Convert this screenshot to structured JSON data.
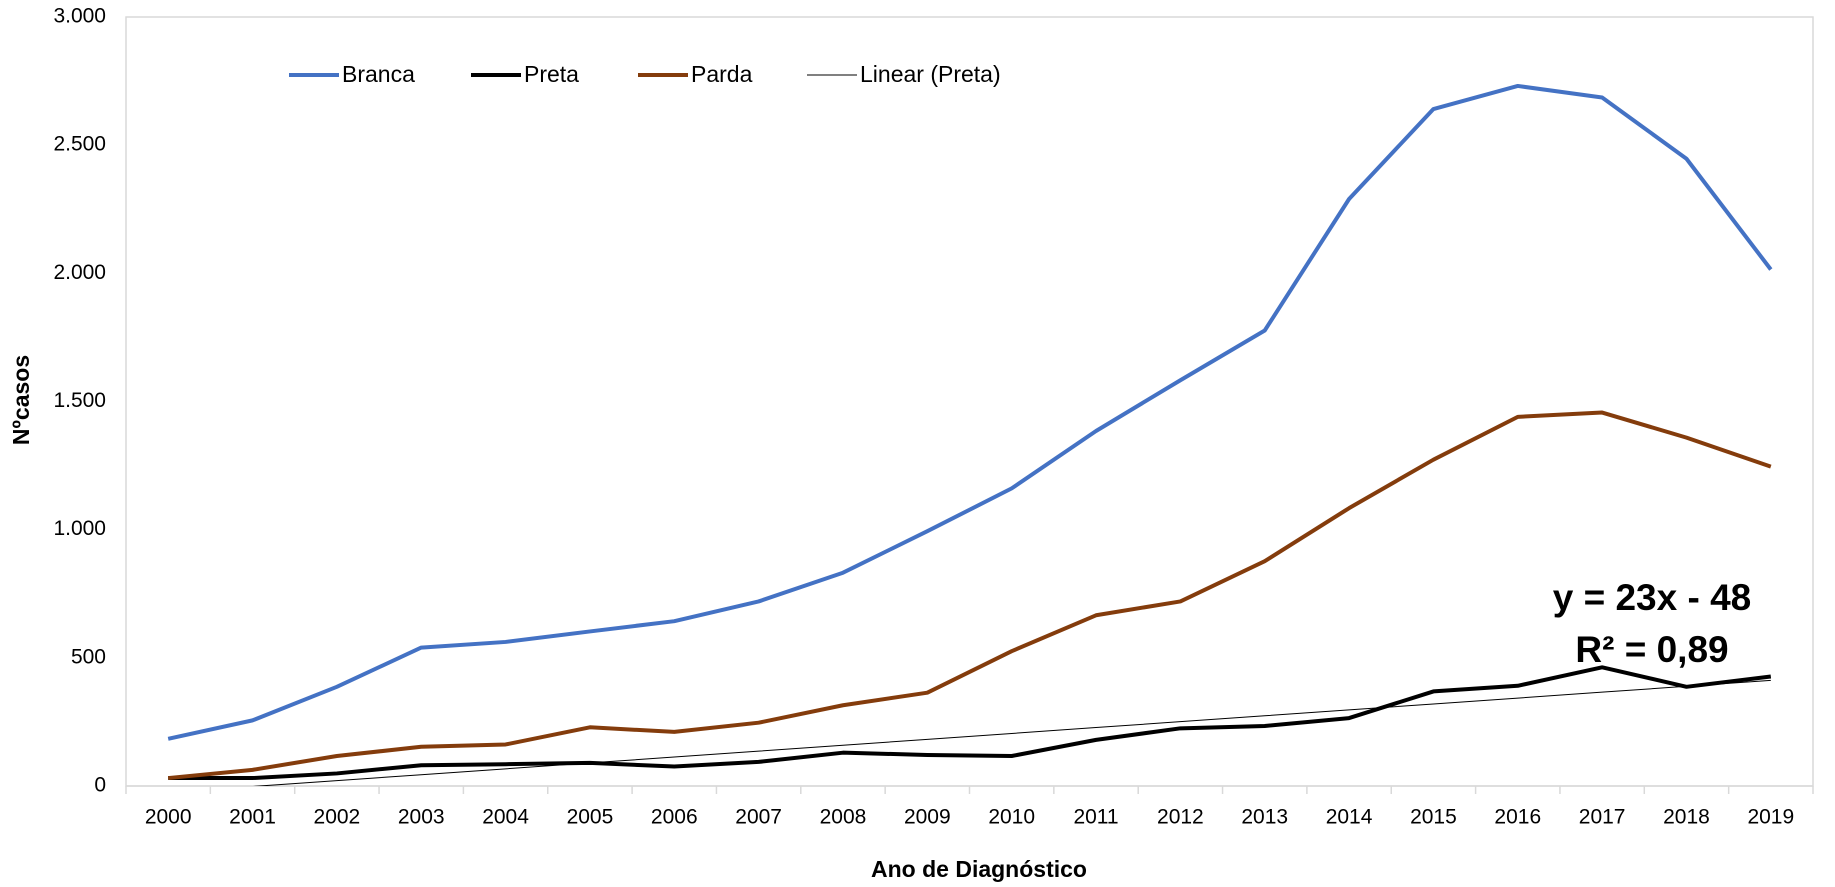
{
  "chart_data": {
    "type": "line",
    "xlabel": "Ano de Diagnóstico",
    "ylabel": "Nºcasos",
    "categories": [
      "2000",
      "2001",
      "2002",
      "2003",
      "2004",
      "2005",
      "2006",
      "2007",
      "2008",
      "2009",
      "2010",
      "2011",
      "2012",
      "2013",
      "2014",
      "2015",
      "2016",
      "2017",
      "2018",
      "2019"
    ],
    "series": [
      {
        "name": "Branca",
        "color": "#4472c4",
        "width": 4,
        "values": [
          184,
          256,
          387,
          540,
          562,
          603,
          643,
          720,
          832,
          994,
          1161,
          1385,
          1583,
          1777,
          2290,
          2641,
          2731,
          2686,
          2447,
          2015
        ]
      },
      {
        "name": "Preta",
        "color": "#000000",
        "width": 4,
        "values": [
          31,
          31,
          49,
          81,
          85,
          90,
          76,
          94,
          130,
          121,
          117,
          180,
          225,
          234,
          265,
          369,
          391,
          463,
          387,
          427
        ]
      },
      {
        "name": "Parda",
        "color": "#843c0c",
        "width": 4,
        "values": [
          31,
          63,
          117,
          153,
          162,
          229,
          211,
          247,
          315,
          364,
          526,
          666,
          720,
          877,
          1084,
          1273,
          1440,
          1457,
          1359,
          1246
        ]
      },
      {
        "name": "Linear (Preta)",
        "color": "#000000",
        "width": 1,
        "values": [
          -25,
          -2,
          21,
          44,
          67,
          90,
          113,
          136,
          159,
          182,
          205,
          228,
          251,
          274,
          297,
          320,
          343,
          366,
          389,
          412
        ]
      }
    ],
    "ylim": [
      0,
      3000
    ],
    "yticks": [
      0,
      500,
      {
        "value": 1000,
        "label": "1.000"
      },
      {
        "value": 1500,
        "label": "1.500"
      },
      {
        "value": 2000,
        "label": "2.000"
      },
      {
        "value": 2500,
        "label": "2.500"
      },
      {
        "value": 3000,
        "label": "3.000"
      }
    ],
    "annotations": [
      "y = 23x - 48",
      "R² = 0,89"
    ],
    "legend": "top-left"
  }
}
